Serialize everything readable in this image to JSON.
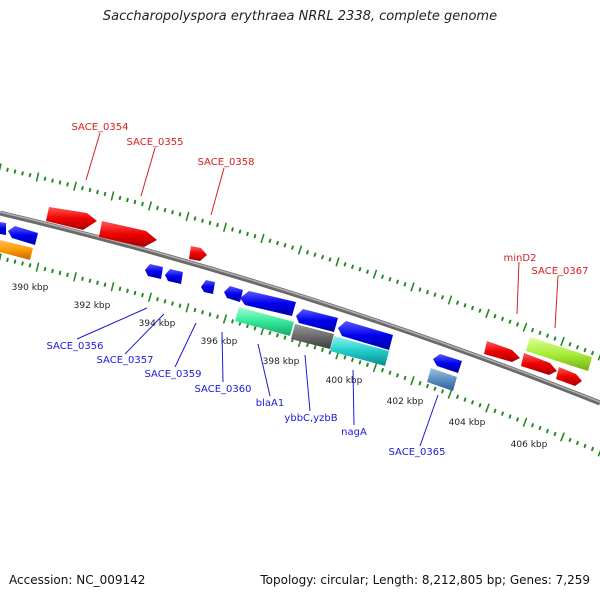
{
  "title": "Saccharopolyspora erythraea NRRL 2338, complete genome",
  "footer": {
    "accession": "Accession: NC_009142",
    "summary": "Topology: circular; Length: 8,212,805 bp; Genes: 7,259"
  },
  "colors": {
    "backbone": "#808080",
    "ticks": "#228B22",
    "forward_label": "#d42020",
    "reverse_label": "#1a1ad8",
    "tick_label": "#222222"
  },
  "ruler": {
    "unit": "kbp",
    "labels": [
      "390 kbp",
      "392 kbp",
      "394 kbp",
      "396 kbp",
      "398 kbp",
      "400 kbp",
      "402 kbp",
      "404 kbp",
      "406 kbp"
    ]
  },
  "forward_gene_labels": [
    "SACE_0354",
    "SACE_0355",
    "SACE_0358",
    "minD2",
    "SACE_0367"
  ],
  "reverse_gene_labels": [
    "SACE_0356",
    "SACE_0357",
    "SACE_0359",
    "SACE_0360",
    "blaA1",
    "ybbC,yzbB",
    "nagA",
    "SACE_0365"
  ],
  "feature_colors": [
    "red",
    "blue",
    "orange",
    "green",
    "dark-gray",
    "cyan",
    "light-green",
    "steel-blue"
  ]
}
